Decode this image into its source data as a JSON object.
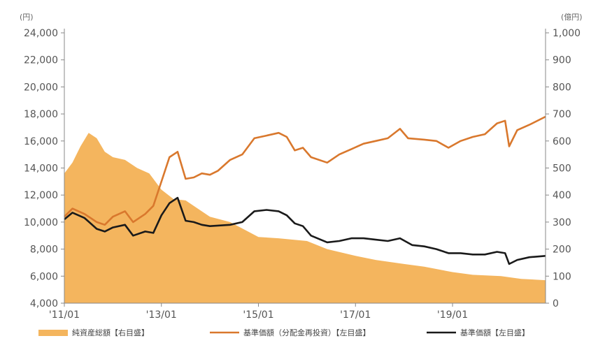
{
  "chart_data": {
    "type": "line",
    "units": {
      "left": "(円)",
      "right": "(億円)"
    },
    "y_left": {
      "min": 4000,
      "max": 24000,
      "step": 2000,
      "ticks": [
        "4,000",
        "6,000",
        "8,000",
        "10,000",
        "12,000",
        "14,000",
        "16,000",
        "18,000",
        "20,000",
        "22,000",
        "24,000"
      ]
    },
    "y_right": {
      "min": 0,
      "max": 1000,
      "step": 100,
      "ticks": [
        "0",
        "100",
        "200",
        "300",
        "400",
        "500",
        "600",
        "700",
        "800",
        "900",
        "1,000"
      ]
    },
    "x": {
      "start": "2011-01",
      "end": "2020-12",
      "ticks": [
        {
          "label": "'11/01",
          "date": "2011-01"
        },
        {
          "label": "'13/01",
          "date": "2013-01"
        },
        {
          "label": "'15/01",
          "date": "2015-01"
        },
        {
          "label": "'17/01",
          "date": "2017-01"
        },
        {
          "label": "'19/01",
          "date": "2019-01"
        }
      ]
    },
    "series": [
      {
        "name": "純資産総額【右目盛】",
        "kind": "area",
        "axis": "right",
        "color": "#f4b55e",
        "points": [
          [
            "2011-01",
            480
          ],
          [
            "2011-03",
            520
          ],
          [
            "2011-05",
            580
          ],
          [
            "2011-07",
            630
          ],
          [
            "2011-09",
            610
          ],
          [
            "2011-11",
            560
          ],
          [
            "2012-01",
            540
          ],
          [
            "2012-04",
            530
          ],
          [
            "2012-07",
            500
          ],
          [
            "2012-10",
            480
          ],
          [
            "2013-01",
            420
          ],
          [
            "2013-04",
            385
          ],
          [
            "2013-07",
            380
          ],
          [
            "2013-10",
            350
          ],
          [
            "2014-01",
            320
          ],
          [
            "2014-06",
            300
          ],
          [
            "2015-01",
            245
          ],
          [
            "2015-06",
            240
          ],
          [
            "2016-01",
            230
          ],
          [
            "2016-06",
            200
          ],
          [
            "2017-01",
            175
          ],
          [
            "2017-06",
            160
          ],
          [
            "2018-01",
            145
          ],
          [
            "2018-06",
            135
          ],
          [
            "2019-01",
            115
          ],
          [
            "2019-06",
            105
          ],
          [
            "2020-01",
            100
          ],
          [
            "2020-06",
            90
          ],
          [
            "2020-12",
            85
          ]
        ]
      },
      {
        "name": "基準価額（分配金再投資）【左目盛】",
        "kind": "line",
        "axis": "left",
        "color": "#d9782d",
        "points": [
          [
            "2011-01",
            10400
          ],
          [
            "2011-03",
            11000
          ],
          [
            "2011-06",
            10600
          ],
          [
            "2011-09",
            10000
          ],
          [
            "2011-11",
            9800
          ],
          [
            "2012-01",
            10400
          ],
          [
            "2012-04",
            10800
          ],
          [
            "2012-06",
            10000
          ],
          [
            "2012-09",
            10600
          ],
          [
            "2012-11",
            11200
          ],
          [
            "2013-01",
            13000
          ],
          [
            "2013-03",
            14800
          ],
          [
            "2013-05",
            15200
          ],
          [
            "2013-07",
            13200
          ],
          [
            "2013-09",
            13300
          ],
          [
            "2013-11",
            13600
          ],
          [
            "2014-01",
            13500
          ],
          [
            "2014-03",
            13800
          ],
          [
            "2014-06",
            14600
          ],
          [
            "2014-09",
            15000
          ],
          [
            "2014-12",
            16200
          ],
          [
            "2015-03",
            16400
          ],
          [
            "2015-06",
            16600
          ],
          [
            "2015-08",
            16300
          ],
          [
            "2015-10",
            15300
          ],
          [
            "2015-12",
            15500
          ],
          [
            "2016-02",
            14800
          ],
          [
            "2016-06",
            14400
          ],
          [
            "2016-09",
            15000
          ],
          [
            "2016-12",
            15400
          ],
          [
            "2017-03",
            15800
          ],
          [
            "2017-06",
            16000
          ],
          [
            "2017-09",
            16200
          ],
          [
            "2017-12",
            16900
          ],
          [
            "2018-02",
            16200
          ],
          [
            "2018-06",
            16100
          ],
          [
            "2018-09",
            16000
          ],
          [
            "2018-12",
            15500
          ],
          [
            "2019-03",
            16000
          ],
          [
            "2019-06",
            16300
          ],
          [
            "2019-09",
            16500
          ],
          [
            "2019-12",
            17300
          ],
          [
            "2020-02",
            17500
          ],
          [
            "2020-03",
            15600
          ],
          [
            "2020-05",
            16800
          ],
          [
            "2020-08",
            17200
          ],
          [
            "2020-12",
            17800
          ]
        ]
      },
      {
        "name": "基準価額【左目盛】",
        "kind": "line",
        "axis": "left",
        "color": "#1a1a1a",
        "points": [
          [
            "2011-01",
            10200
          ],
          [
            "2011-03",
            10700
          ],
          [
            "2011-06",
            10300
          ],
          [
            "2011-09",
            9500
          ],
          [
            "2011-11",
            9300
          ],
          [
            "2012-01",
            9600
          ],
          [
            "2012-04",
            9800
          ],
          [
            "2012-06",
            9000
          ],
          [
            "2012-09",
            9300
          ],
          [
            "2012-11",
            9200
          ],
          [
            "2013-01",
            10500
          ],
          [
            "2013-03",
            11400
          ],
          [
            "2013-05",
            11800
          ],
          [
            "2013-07",
            10100
          ],
          [
            "2013-09",
            10000
          ],
          [
            "2013-11",
            9800
          ],
          [
            "2014-01",
            9700
          ],
          [
            "2014-06",
            9800
          ],
          [
            "2014-09",
            10000
          ],
          [
            "2014-12",
            10800
          ],
          [
            "2015-03",
            10900
          ],
          [
            "2015-06",
            10800
          ],
          [
            "2015-08",
            10500
          ],
          [
            "2015-10",
            9900
          ],
          [
            "2015-12",
            9700
          ],
          [
            "2016-02",
            9000
          ],
          [
            "2016-06",
            8500
          ],
          [
            "2016-09",
            8600
          ],
          [
            "2016-12",
            8800
          ],
          [
            "2017-03",
            8800
          ],
          [
            "2017-06",
            8700
          ],
          [
            "2017-09",
            8600
          ],
          [
            "2017-12",
            8800
          ],
          [
            "2018-03",
            8300
          ],
          [
            "2018-06",
            8200
          ],
          [
            "2018-09",
            8000
          ],
          [
            "2018-12",
            7700
          ],
          [
            "2019-03",
            7700
          ],
          [
            "2019-06",
            7600
          ],
          [
            "2019-09",
            7600
          ],
          [
            "2019-12",
            7800
          ],
          [
            "2020-02",
            7700
          ],
          [
            "2020-03",
            6900
          ],
          [
            "2020-05",
            7200
          ],
          [
            "2020-08",
            7400
          ],
          [
            "2020-12",
            7500
          ]
        ]
      }
    ],
    "legend": {
      "placement": "bottom",
      "items": [
        {
          "label": "純資産総額【右目盛】",
          "color": "#f4b55e",
          "kind": "area"
        },
        {
          "label": "基準価額（分配金再投資）【左目盛】",
          "color": "#d9782d",
          "kind": "line"
        },
        {
          "label": "基準価額【左目盛】",
          "color": "#1a1a1a",
          "kind": "line"
        }
      ]
    },
    "grid": false
  }
}
